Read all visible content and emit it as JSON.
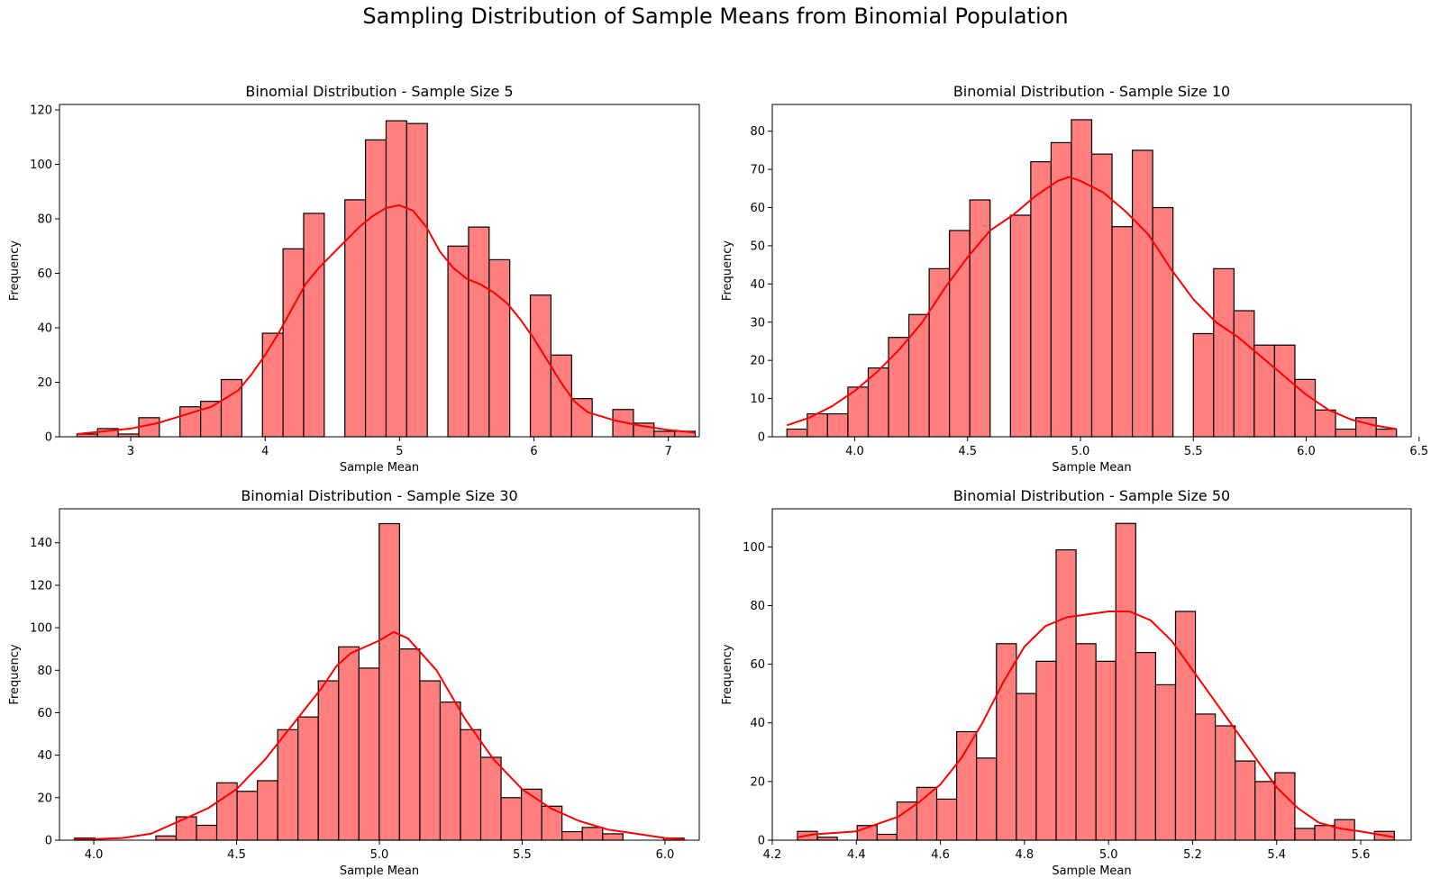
{
  "figure": {
    "suptitle": "Sampling Distribution of Sample Means from Binomial Population"
  },
  "colors": {
    "bar_fill": "#ff7f7f",
    "bar_edge": "#000000",
    "kde_line": "#ff0000",
    "axis": "#000000"
  },
  "chart_data": [
    {
      "type": "bar",
      "title": "Binomial Distribution - Sample Size 5",
      "xlabel": "Sample Mean",
      "ylabel": "Frequency",
      "xlim": [
        2.47,
        7.23
      ],
      "ylim": [
        0,
        122
      ],
      "xticks": [
        3,
        4,
        5,
        6,
        7
      ],
      "xtick_labels": [
        "3",
        "4",
        "5",
        "6",
        "7"
      ],
      "yticks": [
        0,
        20,
        40,
        60,
        80,
        100,
        120
      ],
      "bins": {
        "start": 2.6,
        "width": 0.153333,
        "counts": [
          1,
          3,
          1,
          7,
          0,
          11,
          13,
          21,
          0,
          38,
          69,
          82,
          0,
          87,
          109,
          116,
          115,
          0,
          70,
          77,
          65,
          0,
          52,
          30,
          14,
          0,
          10,
          5,
          2,
          2
        ]
      },
      "kde": {
        "x": [
          2.6,
          2.8,
          3.0,
          3.2,
          3.4,
          3.6,
          3.8,
          3.9,
          4.0,
          4.1,
          4.2,
          4.3,
          4.4,
          4.5,
          4.6,
          4.7,
          4.8,
          4.9,
          5.0,
          5.1,
          5.2,
          5.3,
          5.4,
          5.5,
          5.6,
          5.7,
          5.8,
          5.9,
          6.0,
          6.1,
          6.2,
          6.3,
          6.4,
          6.6,
          6.8,
          7.0,
          7.2
        ],
        "y": [
          1,
          2,
          3,
          5,
          8,
          11,
          17,
          23,
          30,
          38,
          47,
          56,
          62,
          67,
          72,
          77,
          81,
          84,
          85,
          83,
          77,
          68,
          62,
          58,
          56,
          53,
          49,
          43,
          36,
          28,
          20,
          13,
          9,
          6,
          4,
          2.5,
          1.5
        ]
      }
    },
    {
      "type": "bar",
      "title": "Binomial Distribution - Sample Size 10",
      "xlabel": "Sample Mean",
      "ylabel": "Frequency",
      "xlim": [
        3.635,
        6.465
      ],
      "ylim": [
        0,
        87
      ],
      "xticks": [
        4.0,
        4.5,
        5.0,
        5.5,
        6.0,
        6.5
      ],
      "xtick_labels": [
        "4.0",
        "4.5",
        "5.0",
        "5.5",
        "6.0",
        "6.5"
      ],
      "yticks": [
        0,
        10,
        20,
        30,
        40,
        50,
        60,
        70,
        80
      ],
      "bins": {
        "start": 3.7,
        "width": 0.09,
        "counts": [
          2,
          6,
          6,
          13,
          18,
          26,
          32,
          44,
          54,
          62,
          0,
          58,
          72,
          77,
          83,
          74,
          55,
          75,
          60,
          0,
          27,
          44,
          33,
          24,
          24,
          15,
          7,
          2,
          5,
          2
        ]
      },
      "kde": {
        "x": [
          3.7,
          3.8,
          3.9,
          4.0,
          4.1,
          4.2,
          4.3,
          4.4,
          4.5,
          4.6,
          4.7,
          4.8,
          4.9,
          4.95,
          5.0,
          5.1,
          5.2,
          5.3,
          5.4,
          5.5,
          5.6,
          5.7,
          5.8,
          5.9,
          6.0,
          6.1,
          6.2,
          6.3,
          6.4
        ],
        "y": [
          3,
          5,
          8,
          12,
          17,
          23,
          30,
          39,
          47,
          54,
          58,
          63,
          67,
          68,
          67,
          64,
          59,
          53,
          44,
          36,
          30,
          26,
          21,
          16,
          11,
          7,
          4.5,
          3,
          2
        ]
      }
    },
    {
      "type": "bar",
      "title": "Binomial Distribution - Sample Size 30",
      "xlabel": "Sample Mean",
      "ylabel": "Frequency",
      "xlim": [
        3.88,
        6.12
      ],
      "ylim": [
        0,
        156
      ],
      "xticks": [
        4.0,
        4.5,
        5.0,
        5.5,
        6.0
      ],
      "xtick_labels": [
        "4.0",
        "4.5",
        "5.0",
        "5.5",
        "6.0"
      ],
      "yticks": [
        0,
        20,
        40,
        60,
        80,
        100,
        120,
        140
      ],
      "bins": {
        "start": 3.933,
        "width": 0.0711,
        "counts": [
          1,
          0,
          0,
          0,
          2,
          11,
          7,
          27,
          23,
          28,
          52,
          58,
          75,
          91,
          81,
          149,
          90,
          75,
          65,
          52,
          39,
          20,
          24,
          16,
          4,
          6,
          3,
          0,
          0,
          1
        ]
      },
      "kde": {
        "x": [
          3.93,
          4.0,
          4.1,
          4.2,
          4.3,
          4.4,
          4.5,
          4.6,
          4.7,
          4.8,
          4.85,
          4.9,
          5.0,
          5.05,
          5.1,
          5.2,
          5.3,
          5.4,
          5.5,
          5.6,
          5.7,
          5.8,
          5.9,
          6.0,
          6.07
        ],
        "y": [
          0.5,
          0.5,
          1,
          3,
          9,
          15,
          24,
          38,
          55,
          72,
          82,
          88,
          94,
          98,
          95,
          80,
          57,
          38,
          24,
          15,
          9,
          5,
          3,
          1,
          0.5
        ]
      }
    },
    {
      "type": "bar",
      "title": "Binomial Distribution - Sample Size 50",
      "xlabel": "Sample Mean",
      "ylabel": "Frequency",
      "xlim": [
        4.2,
        5.72
      ],
      "ylim": [
        0,
        113
      ],
      "xticks": [
        4.2,
        4.4,
        4.6,
        4.8,
        5.0,
        5.2,
        5.4,
        5.6
      ],
      "xtick_labels": [
        "4.2",
        "4.4",
        "4.6",
        "4.8",
        "5.0",
        "5.2",
        "5.4",
        "5.6"
      ],
      "yticks": [
        0,
        20,
        40,
        60,
        80,
        100
      ],
      "bins": {
        "start": 4.26,
        "width": 0.047333,
        "counts": [
          3,
          1,
          0,
          5,
          2,
          13,
          18,
          14,
          37,
          28,
          67,
          50,
          61,
          99,
          67,
          61,
          108,
          64,
          53,
          78,
          43,
          39,
          27,
          20,
          23,
          4,
          5,
          7,
          0,
          3
        ]
      },
      "kde": {
        "x": [
          4.26,
          4.3,
          4.4,
          4.5,
          4.55,
          4.6,
          4.65,
          4.7,
          4.75,
          4.8,
          4.85,
          4.9,
          4.95,
          5.0,
          5.05,
          5.1,
          5.15,
          5.2,
          5.25,
          5.3,
          5.35,
          5.4,
          5.45,
          5.5,
          5.55,
          5.6,
          5.68
        ],
        "y": [
          1,
          2,
          3,
          8,
          13,
          19,
          28,
          40,
          54,
          66,
          73,
          76,
          77,
          78,
          78,
          75,
          68,
          58,
          48,
          38,
          28,
          18,
          11,
          6,
          4,
          3,
          1
        ]
      }
    }
  ]
}
